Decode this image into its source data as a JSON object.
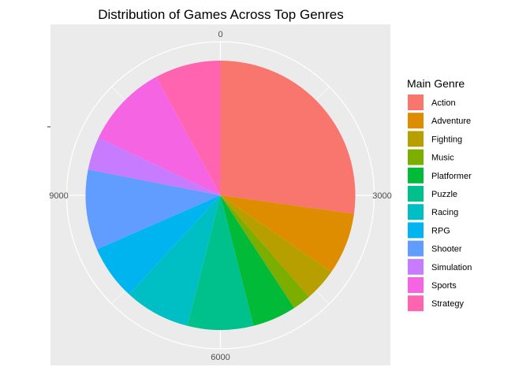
{
  "chart_data": {
    "type": "pie",
    "title": "Distribution of Games Across Top Genres",
    "legend_title": "Main Genre",
    "legend_position": "right",
    "axis_ticks": [
      "0",
      "3000",
      "6000",
      "9000"
    ],
    "axis_max": 12000,
    "grid": true,
    "categories": [
      "Action",
      "Adventure",
      "Fighting",
      "Music",
      "Platformer",
      "Puzzle",
      "Racing",
      "RPG",
      "Shooter",
      "Simulation",
      "Sports",
      "Strategy"
    ],
    "values": [
      3100,
      850,
      450,
      250,
      600,
      900,
      900,
      750,
      1100,
      450,
      1150,
      900
    ],
    "colors": [
      "#F8766D",
      "#DE8C00",
      "#B79F00",
      "#7CAE00",
      "#00BA38",
      "#00C08B",
      "#00BFC4",
      "#00B4F0",
      "#619CFF",
      "#C77CFF",
      "#F564E3",
      "#FF64B0"
    ]
  }
}
